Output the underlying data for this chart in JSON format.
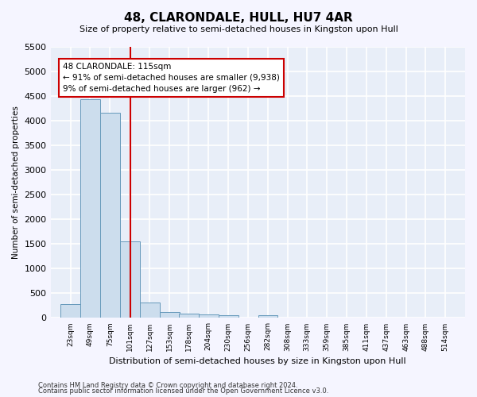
{
  "title": "48, CLARONDALE, HULL, HU7 4AR",
  "subtitle": "Size of property relative to semi-detached houses in Kingston upon Hull",
  "xlabel": "Distribution of semi-detached houses by size in Kingston upon Hull",
  "ylabel": "Number of semi-detached properties",
  "footnote1": "Contains HM Land Registry data © Crown copyright and database right 2024.",
  "footnote2": "Contains public sector information licensed under the Open Government Licence v3.0.",
  "property_size": 115,
  "property_label": "48 CLARONDALE: 115sqm",
  "pct_smaller": 91,
  "n_smaller": 9938,
  "pct_larger": 9,
  "n_larger": 962,
  "bar_color": "#ccdded",
  "bar_edge_color": "#6699bb",
  "line_color": "#cc0000",
  "annotation_box_color": "#cc0000",
  "background_color": "#e8eef8",
  "grid_color": "#ffffff",
  "fig_background": "#f5f5ff",
  "bin_edges": [
    23,
    49,
    75,
    101,
    127,
    153,
    178,
    204,
    230,
    256,
    282,
    308,
    333,
    359,
    385,
    411,
    437,
    463,
    488,
    514,
    540
  ],
  "bin_counts": [
    280,
    4430,
    4160,
    1560,
    320,
    120,
    80,
    70,
    60,
    0,
    60,
    0,
    0,
    0,
    0,
    0,
    0,
    0,
    0,
    0
  ],
  "ylim": [
    0,
    5500
  ],
  "yticks": [
    0,
    500,
    1000,
    1500,
    2000,
    2500,
    3000,
    3500,
    4000,
    4500,
    5000,
    5500
  ]
}
